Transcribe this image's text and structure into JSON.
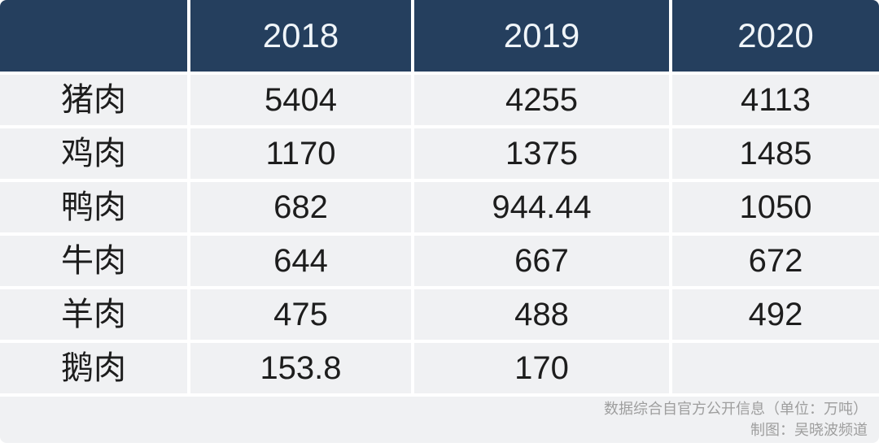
{
  "table": {
    "header": {
      "corner": "",
      "years": [
        "2018",
        "2019",
        "2020"
      ]
    },
    "rows": [
      {
        "label": "猪肉",
        "values": [
          "5404",
          "4255",
          "4113"
        ]
      },
      {
        "label": "鸡肉",
        "values": [
          "1170",
          "1375",
          "1485"
        ]
      },
      {
        "label": "鸭肉",
        "values": [
          "682",
          "944.44",
          "1050"
        ]
      },
      {
        "label": "牛肉",
        "values": [
          "644",
          "667",
          "672"
        ]
      },
      {
        "label": "羊肉",
        "values": [
          "475",
          "488",
          "492"
        ]
      },
      {
        "label": "鹅肉",
        "values": [
          "153.8",
          "170",
          ""
        ]
      }
    ],
    "footer": {
      "line1": "数据综合自官方公开信息（单位：万吨）",
      "line2": "制图：吴晓波频道"
    }
  },
  "colors": {
    "header_bg": "#253f5e",
    "header_text": "#f0f5f9",
    "cell_bg": "#f0f1f3",
    "gutter": "#ffffff",
    "text": "#1d1d1d",
    "footer_text": "#9e9e9e"
  },
  "chart_data": {
    "type": "table",
    "title": "",
    "unit": "万吨",
    "column_headers": [
      "",
      "2018",
      "2019",
      "2020"
    ],
    "categories": [
      "猪肉",
      "鸡肉",
      "鸭肉",
      "牛肉",
      "羊肉",
      "鹅肉"
    ],
    "series": [
      {
        "name": "2018",
        "values": [
          5404,
          1170,
          682,
          644,
          475,
          153.8
        ]
      },
      {
        "name": "2019",
        "values": [
          4255,
          1375,
          944.44,
          667,
          488,
          170
        ]
      },
      {
        "name": "2020",
        "values": [
          4113,
          1485,
          1050,
          672,
          492,
          null
        ]
      }
    ],
    "source_note": "数据综合自官方公开信息（单位：万吨）",
    "credit": "制图：吴晓波频道"
  }
}
